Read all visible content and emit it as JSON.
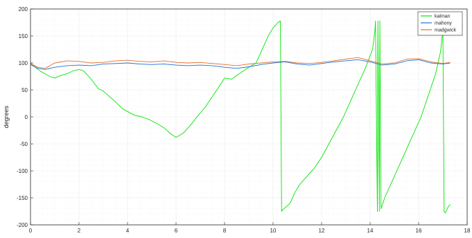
{
  "chart_data": {
    "type": "line",
    "title": "",
    "xlabel": "",
    "ylabel": "degrees",
    "xlim": [
      0,
      18
    ],
    "ylim": [
      -200,
      200
    ],
    "xticks": [
      0,
      2,
      4,
      6,
      8,
      10,
      12,
      14,
      16,
      18
    ],
    "yticks": [
      -200,
      -150,
      -100,
      -50,
      0,
      50,
      100,
      150,
      200
    ],
    "grid": "on (major and minor, dotted)",
    "legend_placement": "top-right",
    "series": [
      {
        "name": "kalman",
        "color": "#00e600",
        "x": [
          0,
          0.2,
          0.4,
          0.6,
          0.8,
          1.0,
          1.2,
          1.5,
          1.8,
          2.0,
          2.2,
          2.5,
          2.8,
          3.0,
          3.2,
          3.5,
          3.8,
          4.0,
          4.3,
          4.6,
          4.9,
          5.2,
          5.5,
          5.8,
          6.0,
          6.3,
          6.6,
          6.9,
          7.2,
          7.5,
          7.8,
          8.0,
          8.3,
          8.6,
          9.0,
          9.3,
          9.6,
          9.8,
          10.0,
          10.2,
          10.3,
          10.35,
          10.4,
          10.7,
          10.9,
          11.1,
          11.4,
          11.7,
          12.0,
          12.3,
          12.6,
          12.9,
          13.2,
          13.5,
          13.8,
          14.1,
          14.2,
          14.22,
          14.3,
          14.32,
          14.38,
          14.4,
          14.45,
          14.6,
          14.9,
          15.2,
          15.5,
          15.8,
          16.1,
          16.4,
          16.7,
          16.9,
          17.0,
          17.05,
          17.1,
          17.2,
          17.3
        ],
        "values": [
          100,
          92,
          85,
          80,
          75,
          72,
          76,
          80,
          86,
          88,
          85,
          70,
          52,
          48,
          40,
          28,
          15,
          10,
          3,
          0,
          -5,
          -12,
          -20,
          -32,
          -38,
          -30,
          -15,
          2,
          18,
          38,
          58,
          72,
          70,
          80,
          92,
          100,
          130,
          150,
          165,
          175,
          178,
          -175,
          -172,
          -160,
          -140,
          -125,
          -110,
          -95,
          -75,
          -50,
          -25,
          0,
          30,
          60,
          90,
          125,
          160,
          178,
          -175,
          178,
          -175,
          178,
          -170,
          -150,
          -120,
          -90,
          -60,
          -30,
          0,
          40,
          80,
          120,
          160,
          -175,
          -178,
          -168,
          -162
        ]
      },
      {
        "name": "mahony",
        "color": "#1f6fd6",
        "x": [
          0,
          0.3,
          0.6,
          1.0,
          1.5,
          2.0,
          2.5,
          3.0,
          3.5,
          4.0,
          4.5,
          5.0,
          5.5,
          6.0,
          6.5,
          7.0,
          7.5,
          8.0,
          8.5,
          9.0,
          9.5,
          10.0,
          10.5,
          11.0,
          11.5,
          12.0,
          12.5,
          13.0,
          13.5,
          14.0,
          14.5,
          15.0,
          15.5,
          16.0,
          16.5,
          17.0,
          17.3
        ],
        "values": [
          97,
          90,
          88,
          92,
          95,
          96,
          95,
          98,
          99,
          100,
          98,
          97,
          98,
          96,
          95,
          96,
          95,
          92,
          90,
          93,
          97,
          100,
          102,
          98,
          96,
          99,
          102,
          104,
          106,
          102,
          96,
          98,
          104,
          106,
          100,
          98,
          100
        ]
      },
      {
        "name": "madgwick",
        "color": "#e0702c",
        "x": [
          0,
          0.3,
          0.6,
          1.0,
          1.5,
          2.0,
          2.5,
          3.0,
          3.5,
          4.0,
          4.5,
          5.0,
          5.5,
          6.0,
          6.5,
          7.0,
          7.5,
          8.0,
          8.5,
          9.0,
          9.5,
          10.0,
          10.5,
          11.0,
          11.5,
          12.0,
          12.5,
          13.0,
          13.5,
          14.0,
          14.5,
          15.0,
          15.5,
          16.0,
          16.5,
          17.0,
          17.3
        ],
        "values": [
          99,
          92,
          90,
          100,
          104,
          103,
          100,
          101,
          104,
          105,
          103,
          102,
          104,
          101,
          100,
          101,
          99,
          97,
          95,
          98,
          100,
          102,
          103,
          100,
          99,
          101,
          104,
          107,
          110,
          104,
          98,
          100,
          107,
          108,
          102,
          99,
          101
        ]
      }
    ]
  }
}
